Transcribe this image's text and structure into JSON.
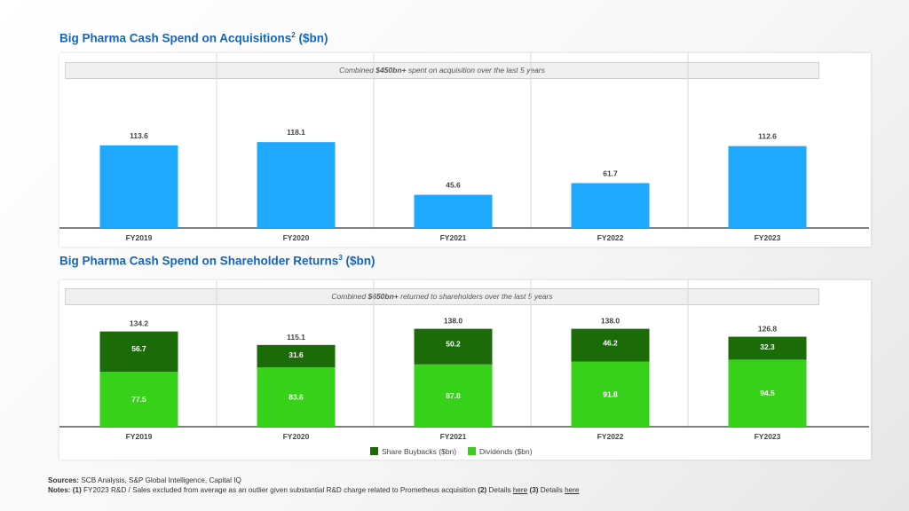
{
  "titles": {
    "acq_title": "Big Pharma Cash Spend on Acquisitions",
    "acq_sup": "2",
    "acq_unit": " ($bn)",
    "ret_title": "Big Pharma Cash Spend on Shareholder Returns",
    "ret_sup": "3",
    "ret_unit": " ($bn)"
  },
  "banners": {
    "acq_pre": "Combined ",
    "acq_bold": "$450bn+",
    "acq_post": " spent on acquisition over the last 5 years",
    "ret_pre": "Combined ",
    "ret_bold": "$650bn+",
    "ret_post": " returned to shareholders over the last 5 years"
  },
  "colors": {
    "acq_bar": "#1ea9ff",
    "buybacks": "#1b6b09",
    "dividends": "#38d11a",
    "axis": "#555555",
    "grid": "#d8d8d8"
  },
  "chart_data": [
    {
      "type": "bar",
      "title": "Big Pharma Cash Spend on Acquisitions2 ($bn)",
      "categories": [
        "FY2019",
        "FY2020",
        "FY2021",
        "FY2022",
        "FY2023"
      ],
      "values": [
        113.6,
        118.1,
        45.6,
        61.7,
        112.6
      ],
      "value_labels": [
        "113.6",
        "118.1",
        "45.6",
        "61.7",
        "112.6"
      ],
      "annotation": "Combined $450bn+ spent on acquisition over the last 5 years",
      "ylim": [
        0,
        140
      ],
      "grid": "vertical separators",
      "legend": "none"
    },
    {
      "type": "bar",
      "stacked": true,
      "title": "Big Pharma Cash Spend on Shareholder Returns3 ($bn)",
      "categories": [
        "FY2019",
        "FY2020",
        "FY2021",
        "FY2022",
        "FY2023"
      ],
      "series": [
        {
          "name": "Dividends ($bn)",
          "values": [
            77.5,
            83.6,
            87.8,
            91.8,
            94.5
          ],
          "labels": [
            "77.5",
            "83.6",
            "87.8",
            "91.8",
            "94.5"
          ]
        },
        {
          "name": "Share Buybacks ($bn)",
          "values": [
            56.7,
            31.6,
            50.2,
            46.2,
            32.3
          ],
          "labels": [
            "56.7",
            "31.6",
            "50.2",
            "46.2",
            "32.3"
          ]
        }
      ],
      "totals": [
        134.2,
        115.1,
        138.0,
        138.0,
        126.8
      ],
      "total_labels": [
        "134.2",
        "115.1",
        "138.0",
        "138.0",
        "126.8"
      ],
      "annotation": "Combined $650bn+ returned to shareholders over the last 5 years",
      "ylim": [
        0,
        140
      ],
      "grid": "vertical separators",
      "legend": "bottom-center"
    }
  ],
  "footer": {
    "sources_label": "Sources:",
    "sources_text": " SCB Analysis, S&P Global Intelligence, Capital IQ",
    "notes_label": "Notes:",
    "note1_num": " (1)",
    "note1_text": " FY2023 R&D / Sales excluded from average as an outlier given substantial R&D charge related to Prometheus acquisition",
    "note2_num": " (2)",
    "note2_text": " Details ",
    "note2_link": "here",
    "note3_num": " (3)",
    "note3_text": " Details ",
    "note3_link": "here"
  }
}
